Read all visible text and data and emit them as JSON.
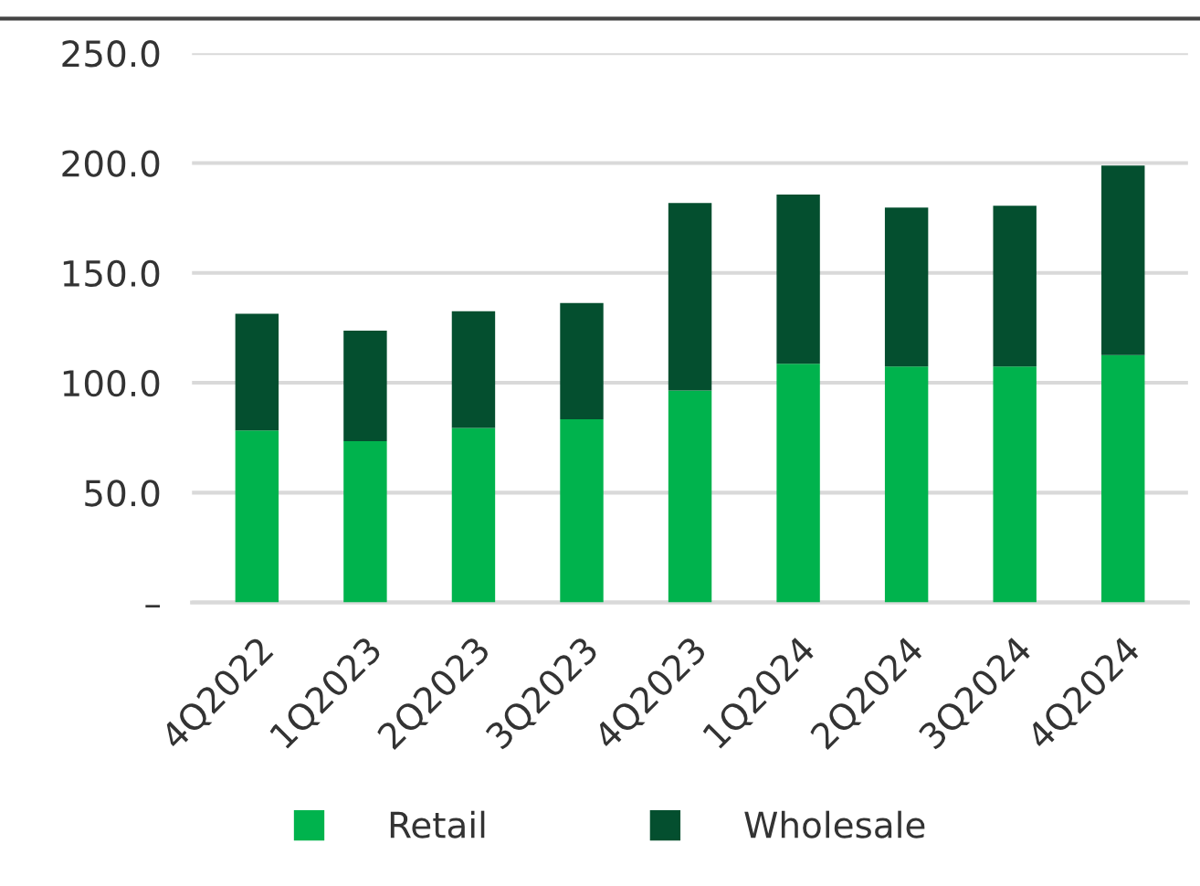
{
  "chart_data": {
    "type": "bar",
    "stacked": true,
    "categories": [
      "4Q2022",
      "1Q2023",
      "2Q2023",
      "3Q2023",
      "4Q2023",
      "1Q2024",
      "2Q2024",
      "3Q2024",
      "4Q2024"
    ],
    "series": [
      {
        "name": "Retail",
        "color": "#00b34d",
        "values": [
          78.3,
          73.4,
          79.4,
          83.4,
          96.5,
          108.6,
          107.4,
          107.4,
          112.6
        ]
      },
      {
        "name": "Wholesale",
        "color": "#044f2f",
        "values": [
          53.1,
          50.3,
          53.1,
          52.9,
          85.3,
          77.1,
          72.3,
          73.2,
          86.3
        ]
      }
    ],
    "ylim": [
      0,
      250
    ],
    "yticks": [
      {
        "value": 0,
        "label": "–"
      },
      {
        "value": 50,
        "label": "50.0"
      },
      {
        "value": 100,
        "label": "100.0"
      },
      {
        "value": 150,
        "label": "150.0"
      },
      {
        "value": 200,
        "label": "200.0"
      },
      {
        "value": 250,
        "label": "250.0"
      }
    ],
    "grid": "y",
    "legend": "bottom"
  }
}
